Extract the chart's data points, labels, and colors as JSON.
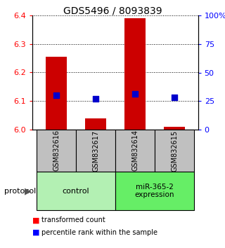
{
  "title": "GDS5496 / 8093839",
  "samples": [
    "GSM832616",
    "GSM832617",
    "GSM832614",
    "GSM832615"
  ],
  "red_values": [
    6.255,
    6.04,
    6.39,
    6.01
  ],
  "blue_values_pct": [
    30,
    27,
    31,
    28
  ],
  "ylim_left": [
    6.0,
    6.4
  ],
  "ylim_right": [
    0,
    100
  ],
  "yticks_left": [
    6.0,
    6.1,
    6.2,
    6.3,
    6.4
  ],
  "yticks_right": [
    0,
    25,
    50,
    75,
    100
  ],
  "ytick_labels_right": [
    "0",
    "25",
    "50",
    "75",
    "100%"
  ],
  "bar_color": "#cc0000",
  "dot_color": "#0000cc",
  "sample_box_color": "#c0c0c0",
  "ctrl_color": "#b3f0b3",
  "mir_color": "#66ee66",
  "bar_width": 0.55,
  "dot_size": 40,
  "protocol_label": "protocol",
  "legend_red": "transformed count",
  "legend_blue": "percentile rank within the sample"
}
